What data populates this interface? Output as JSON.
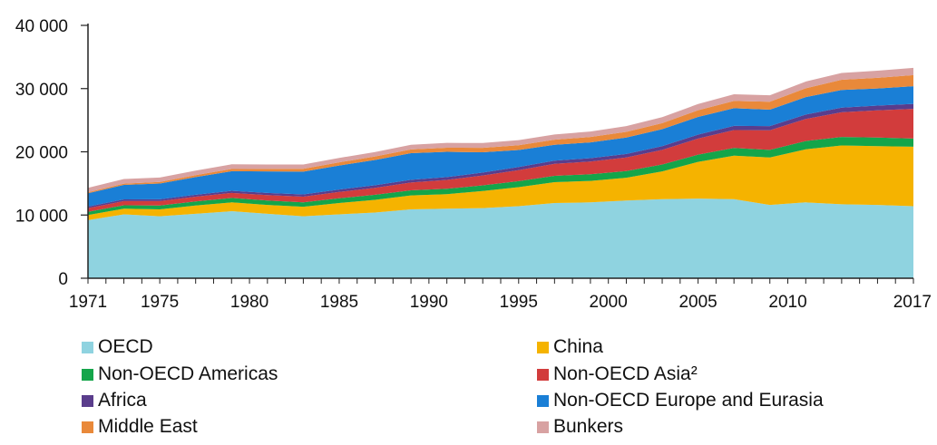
{
  "chart_data": {
    "type": "area",
    "stacked": true,
    "title": "",
    "xlabel": "",
    "ylabel": "",
    "ylim": [
      0,
      40000
    ],
    "yticks": [
      0,
      10000,
      20000,
      30000,
      40000
    ],
    "ytick_labels": [
      "0",
      "10 000",
      "20 000",
      "30 000",
      "40 000"
    ],
    "xlim": [
      1971,
      2017
    ],
    "xticks": [
      1971,
      1975,
      1980,
      1985,
      1990,
      1995,
      2000,
      2005,
      2010,
      2017
    ],
    "xtick_labels": [
      "1971",
      "1975",
      "1980",
      "1985",
      "1990",
      "1995",
      "2000",
      "2005",
      "2010",
      "2017"
    ],
    "grid": false,
    "legend_position": "bottom",
    "x": [
      1971,
      1973,
      1975,
      1977,
      1979,
      1981,
      1983,
      1985,
      1987,
      1989,
      1991,
      1993,
      1995,
      1997,
      1999,
      2001,
      2003,
      2005,
      2007,
      2009,
      2011,
      2013,
      2015,
      2017
    ],
    "series": [
      {
        "name": "OECD",
        "color": "#8fd3e0",
        "values": [
          9200,
          10100,
          9800,
          10200,
          10600,
          10200,
          9800,
          10100,
          10400,
          10900,
          11000,
          11100,
          11400,
          11900,
          12000,
          12300,
          12500,
          12600,
          12500,
          11600,
          12000,
          11700,
          11600,
          11400
        ]
      },
      {
        "name": "China",
        "color": "#f5b300",
        "values": [
          800,
          900,
          1100,
          1300,
          1400,
          1400,
          1500,
          1800,
          2000,
          2200,
          2300,
          2700,
          3000,
          3300,
          3400,
          3600,
          4400,
          5800,
          6900,
          7500,
          8400,
          9300,
          9300,
          9400
        ]
      },
      {
        "name": "Non-OECD Americas",
        "color": "#14a54a",
        "values": [
          500,
          550,
          600,
          650,
          700,
          700,
          700,
          750,
          800,
          800,
          850,
          900,
          950,
          1000,
          1050,
          1050,
          1100,
          1150,
          1200,
          1200,
          1300,
          1350,
          1350,
          1300
        ]
      },
      {
        "name": "Non-OECD Asia²",
        "color": "#d23c3c",
        "values": [
          600,
          650,
          700,
          750,
          800,
          850,
          900,
          1000,
          1100,
          1250,
          1400,
          1550,
          1750,
          1900,
          2000,
          2150,
          2300,
          2550,
          2850,
          3100,
          3500,
          3900,
          4300,
          4700
        ]
      },
      {
        "name": "Africa",
        "color": "#5a3d8c",
        "values": [
          250,
          270,
          290,
          310,
          330,
          350,
          370,
          390,
          410,
          430,
          450,
          470,
          490,
          510,
          540,
          560,
          590,
          620,
          650,
          670,
          700,
          740,
          760,
          780
        ]
      },
      {
        "name": "Non-OECD Europe and Eurasia",
        "color": "#1a7fd6",
        "values": [
          2100,
          2300,
          2500,
          2800,
          3100,
          3400,
          3600,
          3800,
          4000,
          4200,
          4000,
          3200,
          2700,
          2500,
          2500,
          2600,
          2700,
          2800,
          2800,
          2600,
          2750,
          2800,
          2700,
          2800
        ]
      },
      {
        "name": "Middle East",
        "color": "#e9893a",
        "values": [
          150,
          200,
          250,
          300,
          350,
          400,
          450,
          500,
          550,
          600,
          650,
          700,
          750,
          800,
          850,
          900,
          950,
          1050,
          1150,
          1250,
          1400,
          1600,
          1700,
          1750
        ]
      },
      {
        "name": "Bunkers",
        "color": "#d8a2a2",
        "values": [
          700,
          720,
          700,
          720,
          740,
          700,
          680,
          690,
          710,
          740,
          760,
          780,
          810,
          840,
          870,
          900,
          940,
          990,
          1050,
          1020,
          1070,
          1090,
          1120,
          1150
        ]
      }
    ]
  },
  "legend": {
    "items": [
      {
        "label": "OECD",
        "color": "#8fd3e0"
      },
      {
        "label": "China",
        "color": "#f5b300"
      },
      {
        "label": "Non-OECD Americas",
        "color": "#14a54a"
      },
      {
        "label": "Non-OECD Asia²",
        "color": "#d23c3c"
      },
      {
        "label": "Africa",
        "color": "#5a3d8c"
      },
      {
        "label": "Non-OECD Europe and Eurasia",
        "color": "#1a7fd6"
      },
      {
        "label": "Middle East",
        "color": "#e9893a"
      },
      {
        "label": "Bunkers",
        "color": "#d8a2a2"
      }
    ]
  }
}
